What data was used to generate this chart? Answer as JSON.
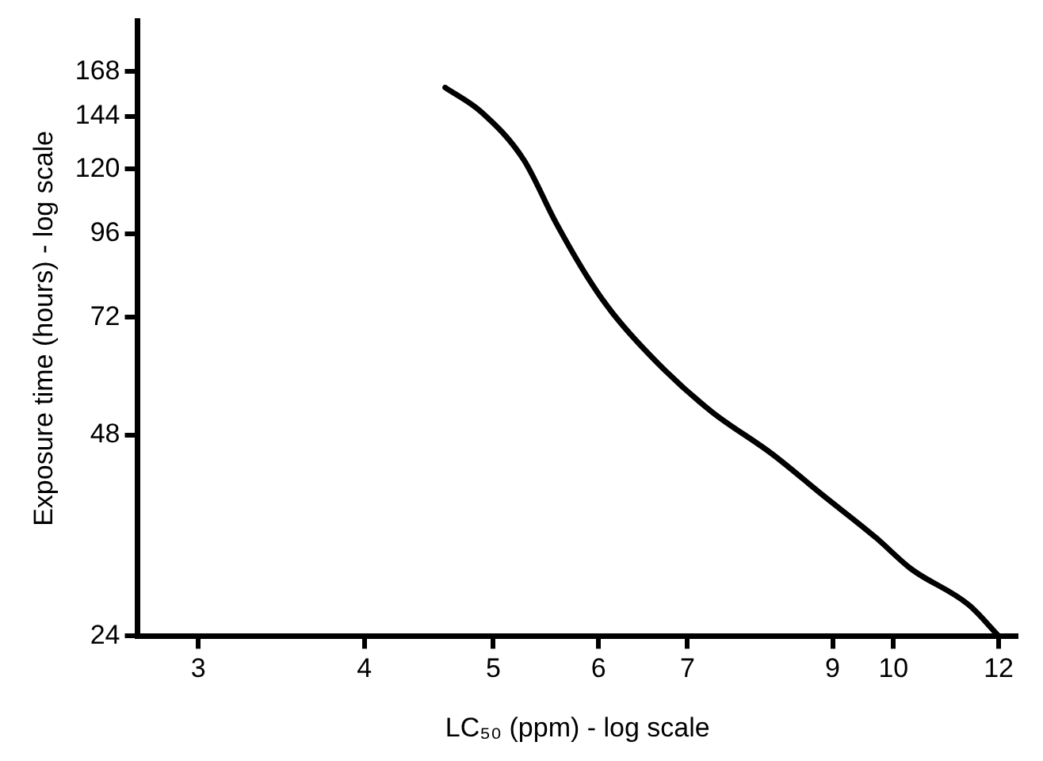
{
  "chart_data": {
    "type": "line",
    "xlabel": "LC₅₀ (ppm) - log scale",
    "ylabel": "Exposure time (hours) - log scale",
    "log": "xy",
    "grid": false,
    "legend": false,
    "marker": "none",
    "line_style": "solid",
    "xlim": [
      2.7,
      12.4
    ],
    "xticks": [
      3,
      4,
      5,
      6,
      7,
      9,
      10,
      12
    ],
    "ylim": [
      24,
      200
    ],
    "yticks": [
      24,
      48,
      72,
      96,
      120,
      144,
      168
    ],
    "series": [
      {
        "color": "#000000",
        "x": [
          4.6,
          4.9,
          5.27,
          5.57,
          5.88,
          6.15,
          6.73,
          7.3,
          8.1,
          8.85,
          9.7,
          10.3,
          11.4,
          12.0
        ],
        "values": [
          159,
          146,
          124,
          100,
          83,
          73,
          60,
          52,
          45,
          39,
          33.7,
          30.3,
          26.7,
          24
        ]
      }
    ]
  }
}
